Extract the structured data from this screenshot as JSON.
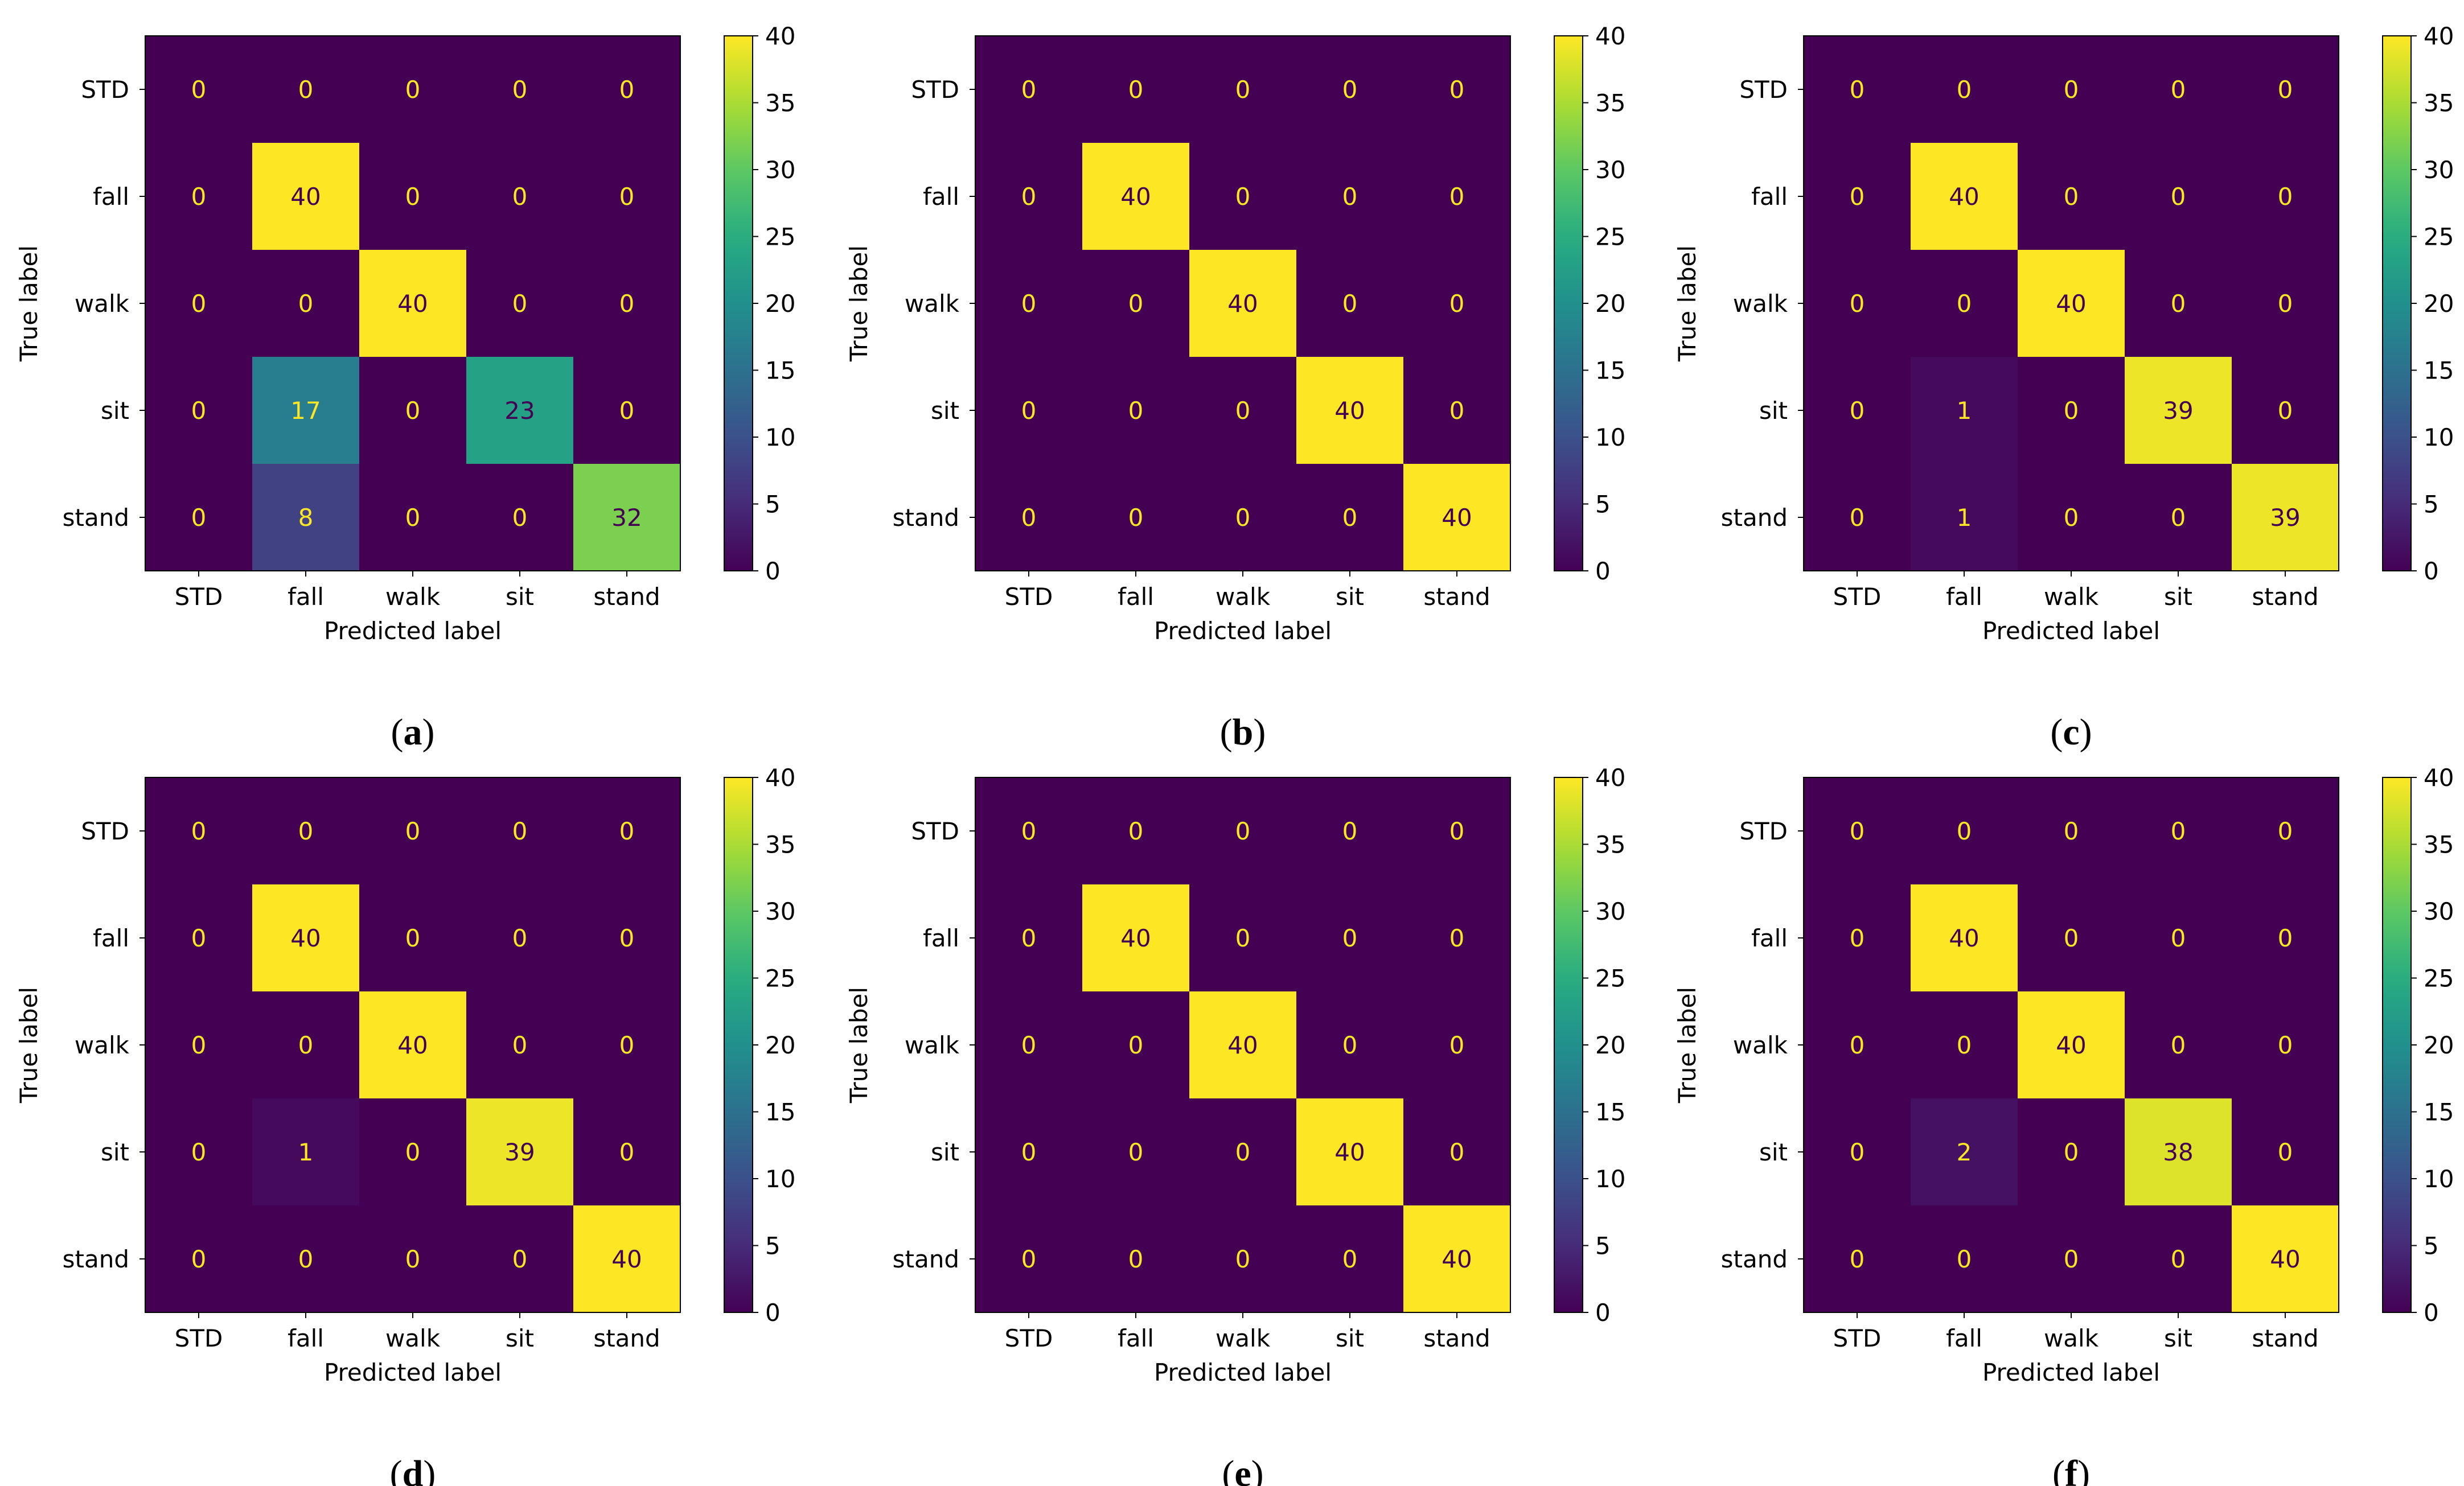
{
  "chart_data": [
    {
      "type": "heatmap",
      "panel_label": "a",
      "classes": [
        "STD",
        "fall",
        "walk",
        "sit",
        "stand"
      ],
      "xlabel": "Predicted label",
      "ylabel": "True label",
      "matrix": [
        [
          0,
          0,
          0,
          0,
          0
        ],
        [
          0,
          40,
          0,
          0,
          0
        ],
        [
          0,
          0,
          40,
          0,
          0
        ],
        [
          0,
          17,
          0,
          23,
          0
        ],
        [
          0,
          8,
          0,
          0,
          32
        ]
      ],
      "colorbar": {
        "min": 0,
        "max": 40,
        "ticks": [
          0,
          5,
          10,
          15,
          20,
          25,
          30,
          35,
          40
        ],
        "colormap": "viridis"
      }
    },
    {
      "type": "heatmap",
      "panel_label": "b",
      "classes": [
        "STD",
        "fall",
        "walk",
        "sit",
        "stand"
      ],
      "xlabel": "Predicted label",
      "ylabel": "True label",
      "matrix": [
        [
          0,
          0,
          0,
          0,
          0
        ],
        [
          0,
          40,
          0,
          0,
          0
        ],
        [
          0,
          0,
          40,
          0,
          0
        ],
        [
          0,
          0,
          0,
          40,
          0
        ],
        [
          0,
          0,
          0,
          0,
          40
        ]
      ],
      "colorbar": {
        "min": 0,
        "max": 40,
        "ticks": [
          0,
          5,
          10,
          15,
          20,
          25,
          30,
          35,
          40
        ],
        "colormap": "viridis"
      }
    },
    {
      "type": "heatmap",
      "panel_label": "c",
      "classes": [
        "STD",
        "fall",
        "walk",
        "sit",
        "stand"
      ],
      "xlabel": "Predicted label",
      "ylabel": "True label",
      "matrix": [
        [
          0,
          0,
          0,
          0,
          0
        ],
        [
          0,
          40,
          0,
          0,
          0
        ],
        [
          0,
          0,
          40,
          0,
          0
        ],
        [
          0,
          1,
          0,
          39,
          0
        ],
        [
          0,
          1,
          0,
          0,
          39
        ]
      ],
      "colorbar": {
        "min": 0,
        "max": 40,
        "ticks": [
          0,
          5,
          10,
          15,
          20,
          25,
          30,
          35,
          40
        ],
        "colormap": "viridis"
      }
    },
    {
      "type": "heatmap",
      "panel_label": "d",
      "classes": [
        "STD",
        "fall",
        "walk",
        "sit",
        "stand"
      ],
      "xlabel": "Predicted label",
      "ylabel": "True label",
      "matrix": [
        [
          0,
          0,
          0,
          0,
          0
        ],
        [
          0,
          40,
          0,
          0,
          0
        ],
        [
          0,
          0,
          40,
          0,
          0
        ],
        [
          0,
          1,
          0,
          39,
          0
        ],
        [
          0,
          0,
          0,
          0,
          40
        ]
      ],
      "colorbar": {
        "min": 0,
        "max": 40,
        "ticks": [
          0,
          5,
          10,
          15,
          20,
          25,
          30,
          35,
          40
        ],
        "colormap": "viridis"
      }
    },
    {
      "type": "heatmap",
      "panel_label": "e",
      "classes": [
        "STD",
        "fall",
        "walk",
        "sit",
        "stand"
      ],
      "xlabel": "Predicted label",
      "ylabel": "True label",
      "matrix": [
        [
          0,
          0,
          0,
          0,
          0
        ],
        [
          0,
          40,
          0,
          0,
          0
        ],
        [
          0,
          0,
          40,
          0,
          0
        ],
        [
          0,
          0,
          0,
          40,
          0
        ],
        [
          0,
          0,
          0,
          0,
          40
        ]
      ],
      "colorbar": {
        "min": 0,
        "max": 40,
        "ticks": [
          0,
          5,
          10,
          15,
          20,
          25,
          30,
          35,
          40
        ],
        "colormap": "viridis"
      }
    },
    {
      "type": "heatmap",
      "panel_label": "f",
      "classes": [
        "STD",
        "fall",
        "walk",
        "sit",
        "stand"
      ],
      "xlabel": "Predicted label",
      "ylabel": "True label",
      "matrix": [
        [
          0,
          0,
          0,
          0,
          0
        ],
        [
          0,
          40,
          0,
          0,
          0
        ],
        [
          0,
          0,
          40,
          0,
          0
        ],
        [
          0,
          2,
          0,
          38,
          0
        ],
        [
          0,
          0,
          0,
          0,
          40
        ]
      ],
      "colorbar": {
        "min": 0,
        "max": 40,
        "ticks": [
          0,
          5,
          10,
          15,
          20,
          25,
          30,
          35,
          40
        ],
        "colormap": "viridis"
      }
    }
  ],
  "colors": {
    "low_text": "#fde725",
    "high_text": "#440154",
    "axis": "#000000"
  }
}
